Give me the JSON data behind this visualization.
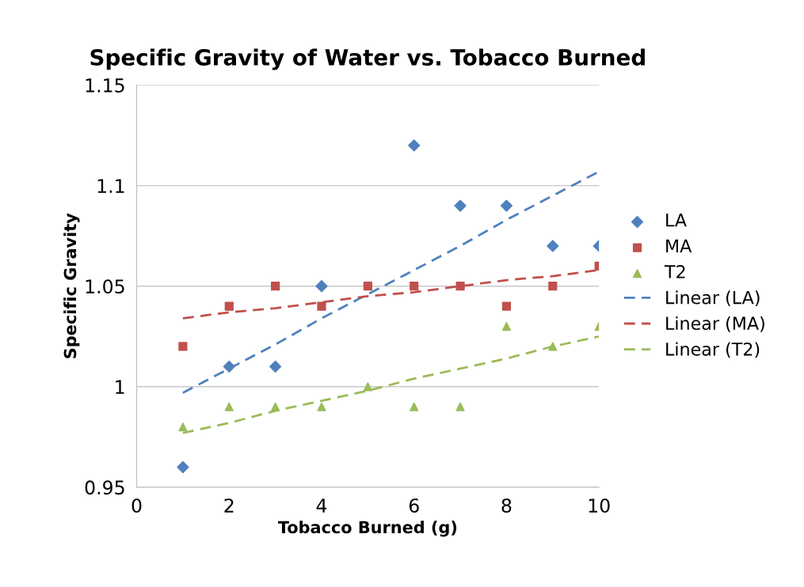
{
  "chart_data": {
    "type": "scatter",
    "title": "Specific Gravity of Water vs. Tobacco Burned",
    "xlabel": "Tobacco Burned (g)",
    "ylabel": "Specific Gravity",
    "xlim": [
      0,
      10
    ],
    "xticks": [
      0,
      2,
      4,
      6,
      8,
      10
    ],
    "ylim": [
      0.95,
      1.15
    ],
    "yticks": [
      0.95,
      1,
      1.05,
      1.1,
      1.15
    ],
    "grid": "y",
    "legend": "right",
    "x": [
      1,
      2,
      3,
      4,
      5,
      6,
      7,
      8,
      9,
      10
    ],
    "series": [
      {
        "name": "LA",
        "color": "#4f81bd",
        "marker": "diamond",
        "values": [
          0.96,
          1.01,
          1.01,
          1.05,
          null,
          1.12,
          1.09,
          1.09,
          1.07,
          1.07
        ]
      },
      {
        "name": "MA",
        "color": "#c0504d",
        "marker": "square",
        "values": [
          1.02,
          1.04,
          1.05,
          1.04,
          1.05,
          1.05,
          1.05,
          1.04,
          1.05,
          1.06
        ]
      },
      {
        "name": "T2",
        "color": "#9bbb59",
        "marker": "triangle",
        "values": [
          0.98,
          0.99,
          0.99,
          0.99,
          1.0,
          0.99,
          0.99,
          1.03,
          1.02,
          1.03
        ]
      },
      {
        "name": "Linear (LA)",
        "type": "line",
        "color": "#4f81bd",
        "line_style": "dashed",
        "values": [
          0.997,
          1.009,
          1.021,
          1.034,
          1.046,
          1.058,
          1.07,
          1.083,
          1.095,
          1.107
        ]
      },
      {
        "name": "Linear (MA)",
        "type": "line",
        "color": "#c0504d",
        "line_style": "dashed",
        "values": [
          1.034,
          1.037,
          1.039,
          1.042,
          1.045,
          1.047,
          1.05,
          1.053,
          1.055,
          1.058
        ]
      },
      {
        "name": "Linear (T2)",
        "type": "line",
        "color": "#9bbb59",
        "line_style": "dashed",
        "values": [
          0.977,
          0.982,
          0.988,
          0.993,
          0.998,
          1.004,
          1.009,
          1.014,
          1.02,
          1.025
        ]
      }
    ]
  }
}
